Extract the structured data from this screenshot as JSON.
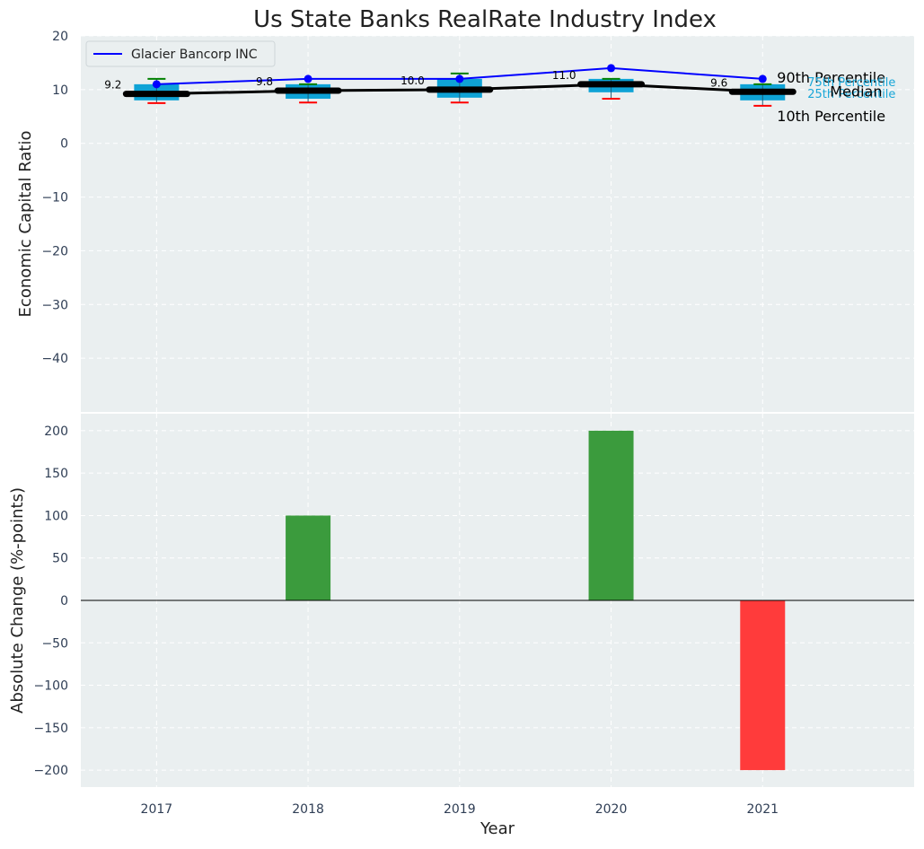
{
  "chart_data": {
    "title": "Us State Banks RealRate Industry Index",
    "xlabel": "Year",
    "categories": [
      "2017",
      "2018",
      "2019",
      "2020",
      "2021"
    ],
    "top": {
      "type": "box",
      "ylabel": "Economic Capital Ratio",
      "ylim": [
        -50,
        20
      ],
      "yticks": [
        20,
        10,
        0,
        -10,
        -20,
        -30,
        -40
      ],
      "grid": true,
      "legend": {
        "position": "top-left",
        "entries": [
          "Glacier Bancorp INC"
        ]
      },
      "percentile_labels": [
        "90th Percentile",
        "Median",
        "10th Percentile",
        "75th Percentile",
        "25th Percentile"
      ],
      "series": [
        {
          "name": "Glacier Bancorp INC",
          "type": "line",
          "color": "#0000ff",
          "values": [
            11.0,
            12.0,
            12.0,
            14.0,
            12.0
          ]
        },
        {
          "name": "Median",
          "type": "line",
          "color": "#000000",
          "values": [
            9.2,
            9.8,
            10.0,
            11.0,
            9.6
          ],
          "labels": [
            "9.2",
            "9.8",
            "10.0",
            "11.0",
            "9.6"
          ]
        },
        {
          "name": "90th Percentile",
          "values": [
            12.0,
            11.0,
            13.0,
            12.0,
            11.0
          ]
        },
        {
          "name": "75th Percentile",
          "values": [
            11.0,
            11.0,
            12.0,
            12.0,
            11.0
          ]
        },
        {
          "name": "25th Percentile",
          "values": [
            8.0,
            8.3,
            8.5,
            9.5,
            8.0
          ]
        },
        {
          "name": "10th Percentile",
          "values": [
            7.5,
            7.6,
            7.6,
            8.3,
            7.0
          ]
        }
      ],
      "colors": {
        "box": "#0fa3d6",
        "upper_whisker": "#008000",
        "lower_whisker": "#ff0000",
        "label_accent": "#1aa7d8"
      }
    },
    "bottom": {
      "type": "bar",
      "ylabel": "Absolute Change (%-points)",
      "ylim": [
        -220,
        220
      ],
      "yticks": [
        200,
        150,
        100,
        50,
        0,
        -50,
        -100,
        -150,
        -200
      ],
      "grid": true,
      "values": [
        0,
        100,
        0,
        200,
        -200
      ],
      "colors": {
        "positive": "#3b9b3d",
        "negative": "#ff3b3b"
      }
    }
  }
}
